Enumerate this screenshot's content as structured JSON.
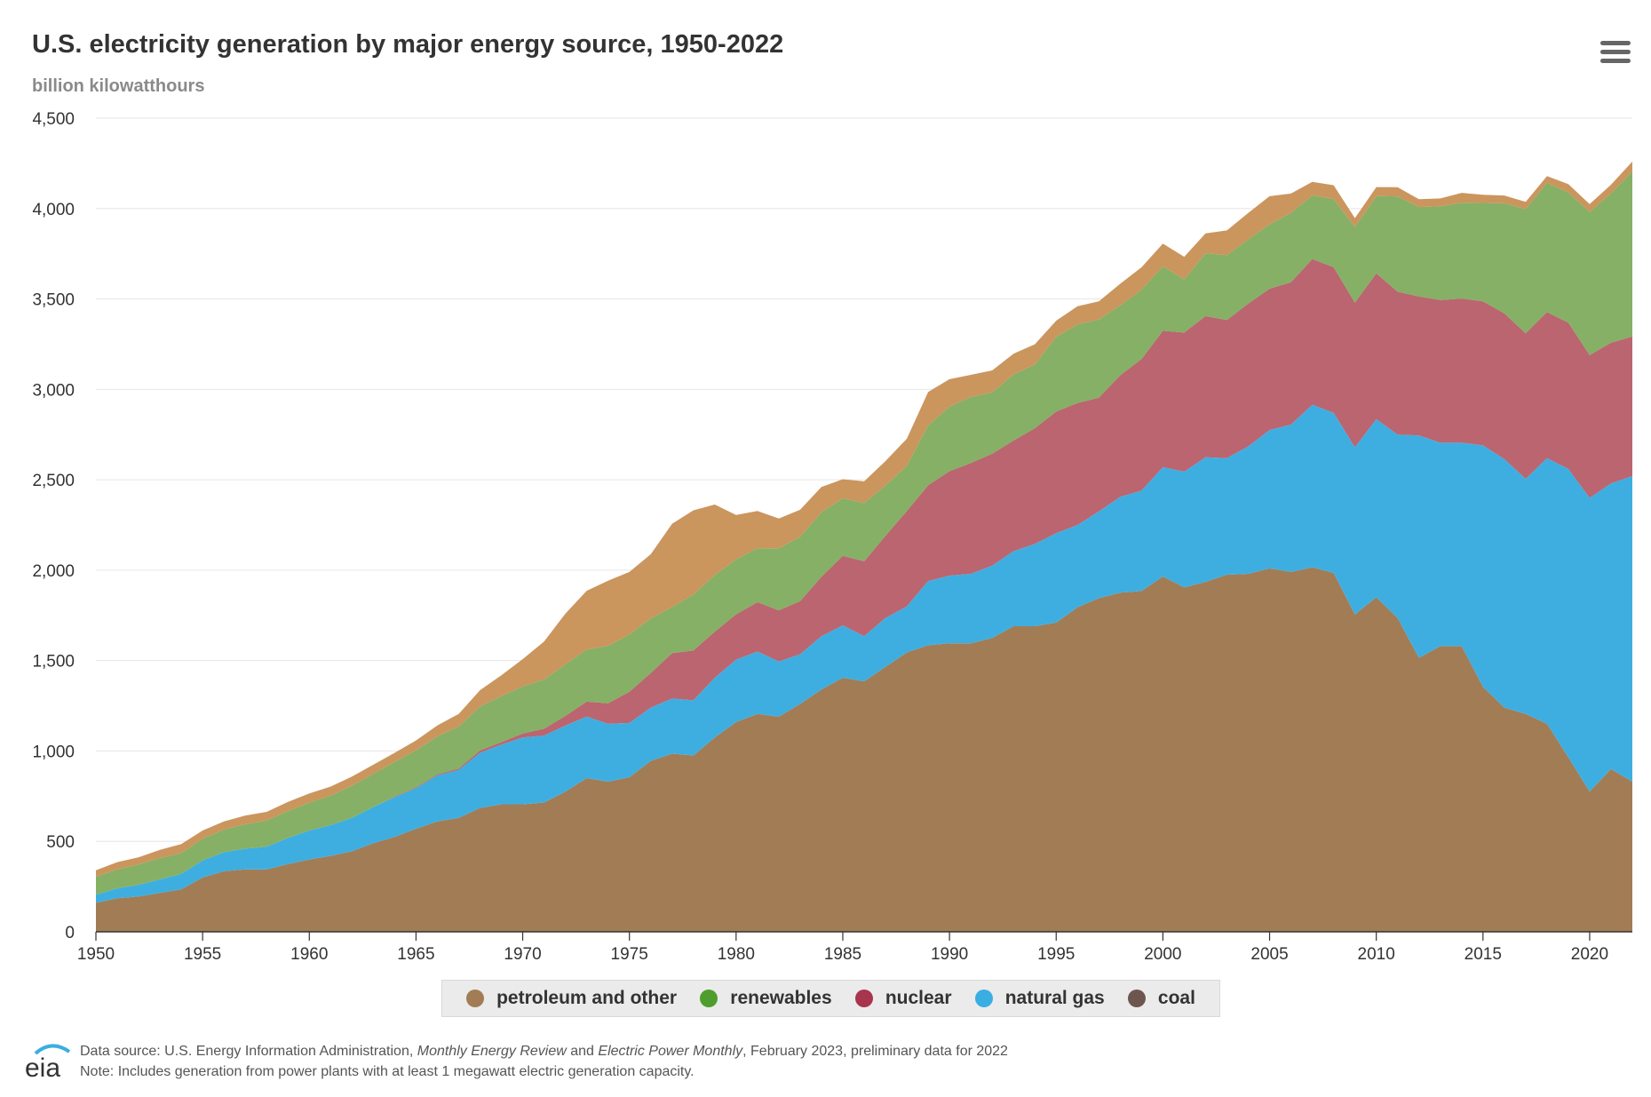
{
  "title": "U.S. electricity generation by major energy source, 1950-2022",
  "subtitle": "billion kilowatthours",
  "menu_icon": "hamburger-menu-icon",
  "legend": [
    {
      "label": "petroleum and other",
      "color": "#cc9660"
    },
    {
      "label": "renewables",
      "color": "#4f9e2d"
    },
    {
      "label": "nuclear",
      "color": "#a8344d"
    },
    {
      "label": "natural gas",
      "color": "#3aaee2"
    },
    {
      "label": "coal",
      "color": "#6e5650"
    }
  ],
  "footer": {
    "logo_text": "eia",
    "source_prefix": "Data source: U.S. Energy Information Administration, ",
    "source_mer": "Monthly Energy Review",
    "source_and": " and ",
    "source_epm": "Electric Power Monthly",
    "source_suffix": ", February 2023, preliminary data for 2022",
    "note": "Note: Includes generation from power plants with at least 1 megawatt electric generation capacity."
  },
  "chart_data": {
    "type": "area",
    "stacked": true,
    "title": "U.S. electricity generation by major energy source, 1950-2022",
    "ylabel": "billion kilowatthours",
    "xlabel": "",
    "ylim": [
      0,
      4500
    ],
    "xlim": [
      1950,
      2022
    ],
    "y_ticks": [
      0,
      500,
      1000,
      1500,
      2000,
      2500,
      3000,
      3500,
      4000,
      4500
    ],
    "y_tick_labels": [
      "0",
      "500",
      "1,000",
      "1,500",
      "2,000",
      "2,500",
      "3,000",
      "3,500",
      "4,000",
      "4,500"
    ],
    "x_ticks": [
      1950,
      1955,
      1960,
      1965,
      1970,
      1975,
      1980,
      1985,
      1990,
      1995,
      2000,
      2005,
      2010,
      2015,
      2020
    ],
    "x_tick_labels": [
      "1950",
      "1955",
      "1960",
      "1965",
      "1970",
      "1975",
      "1980",
      "1985",
      "1990",
      "1995",
      "2000",
      "2005",
      "2010",
      "2015",
      "2020"
    ],
    "grid": "horizontal",
    "legend_position": "bottom-center",
    "series_colors": {
      "coal": "#a27c55",
      "natural gas": "#3eaee0",
      "nuclear": "#ba6570",
      "renewables": "#86b065",
      "petroleum and other": "#cb955e"
    },
    "stack_order": [
      "coal",
      "natural gas",
      "nuclear",
      "renewables",
      "petroleum and other"
    ],
    "x": [
      1950,
      1951,
      1952,
      1953,
      1954,
      1955,
      1956,
      1957,
      1958,
      1959,
      1960,
      1961,
      1962,
      1963,
      1964,
      1965,
      1966,
      1967,
      1968,
      1969,
      1970,
      1971,
      1972,
      1973,
      1974,
      1975,
      1976,
      1977,
      1978,
      1979,
      1980,
      1981,
      1982,
      1983,
      1984,
      1985,
      1986,
      1987,
      1988,
      1989,
      1990,
      1991,
      1992,
      1993,
      1994,
      1995,
      1996,
      1997,
      1998,
      1999,
      2000,
      2001,
      2002,
      2003,
      2004,
      2005,
      2006,
      2007,
      2008,
      2009,
      2010,
      2011,
      2012,
      2013,
      2014,
      2015,
      2016,
      2017,
      2018,
      2019,
      2020,
      2021,
      2022
    ],
    "series": [
      {
        "name": "coal",
        "values": [
          160,
          185,
          195,
          215,
          235,
          300,
          335,
          345,
          345,
          375,
          400,
          420,
          445,
          490,
          525,
          570,
          610,
          630,
          685,
          705,
          705,
          715,
          775,
          850,
          830,
          855,
          945,
          985,
          975,
          1075,
          1160,
          1205,
          1190,
          1260,
          1340,
          1405,
          1385,
          1465,
          1545,
          1585,
          1595,
          1595,
          1625,
          1690,
          1690,
          1710,
          1795,
          1845,
          1875,
          1885,
          1965,
          1905,
          1935,
          1975,
          1980,
          2010,
          1990,
          2015,
          1985,
          1755,
          1850,
          1735,
          1515,
          1580,
          1580,
          1355,
          1240,
          1205,
          1150,
          965,
          775,
          900,
          830
        ]
      },
      {
        "name": "natural gas",
        "values": [
          45,
          55,
          65,
          75,
          85,
          95,
          105,
          115,
          125,
          145,
          160,
          170,
          185,
          200,
          220,
          225,
          255,
          265,
          305,
          330,
          370,
          370,
          365,
          340,
          320,
          300,
          295,
          305,
          305,
          330,
          345,
          345,
          305,
          275,
          295,
          290,
          250,
          270,
          255,
          355,
          375,
          385,
          400,
          415,
          455,
          495,
          455,
          480,
          530,
          555,
          605,
          640,
          690,
          645,
          705,
          765,
          815,
          900,
          885,
          925,
          985,
          1015,
          1230,
          1125,
          1125,
          1335,
          1375,
          1300,
          1470,
          1595,
          1625,
          1580,
          1690
        ]
      },
      {
        "name": "nuclear",
        "values": [
          0,
          0,
          0,
          0,
          0,
          0,
          0,
          0,
          0,
          0,
          0,
          0,
          0,
          0,
          3,
          4,
          6,
          8,
          13,
          14,
          22,
          38,
          54,
          83,
          114,
          173,
          191,
          251,
          276,
          255,
          251,
          273,
          283,
          294,
          328,
          384,
          414,
          455,
          527,
          530,
          577,
          613,
          619,
          612,
          640,
          673,
          675,
          629,
          673,
          728,
          754,
          769,
          780,
          764,
          789,
          782,
          787,
          806,
          806,
          799,
          807,
          790,
          769,
          789,
          797,
          797,
          805,
          805,
          807,
          809,
          790,
          778,
          772
        ]
      },
      {
        "name": "renewables",
        "values": [
          100,
          105,
          112,
          118,
          115,
          120,
          125,
          135,
          145,
          148,
          155,
          163,
          178,
          184,
          192,
          204,
          210,
          232,
          243,
          255,
          261,
          272,
          285,
          288,
          318,
          317,
          302,
          256,
          310,
          313,
          304,
          299,
          343,
          355,
          357,
          319,
          322,
          278,
          250,
          331,
          357,
          365,
          339,
          365,
          353,
          412,
          435,
          433,
          386,
          384,
          357,
          294,
          348,
          358,
          356,
          356,
          384,
          353,
          377,
          419,
          427,
          527,
          494,
          518,
          531,
          544,
          609,
          687,
          716,
          720,
          791,
          826,
          913
        ]
      },
      {
        "name": "petroleum and other",
        "values": [
          35,
          40,
          40,
          45,
          50,
          45,
          45,
          48,
          48,
          50,
          50,
          50,
          50,
          50,
          50,
          55,
          60,
          70,
          90,
          115,
          150,
          210,
          280,
          325,
          360,
          345,
          355,
          460,
          465,
          390,
          245,
          205,
          165,
          150,
          140,
          105,
          120,
          135,
          150,
          185,
          152,
          122,
          122,
          115,
          111,
          90,
          100,
          100,
          120,
          123,
          125,
          125,
          110,
          137,
          146,
          155,
          107,
          74,
          76,
          49,
          50,
          51,
          44,
          44,
          54,
          45,
          43,
          40,
          36,
          46,
          44,
          48,
          55
        ]
      }
    ]
  }
}
